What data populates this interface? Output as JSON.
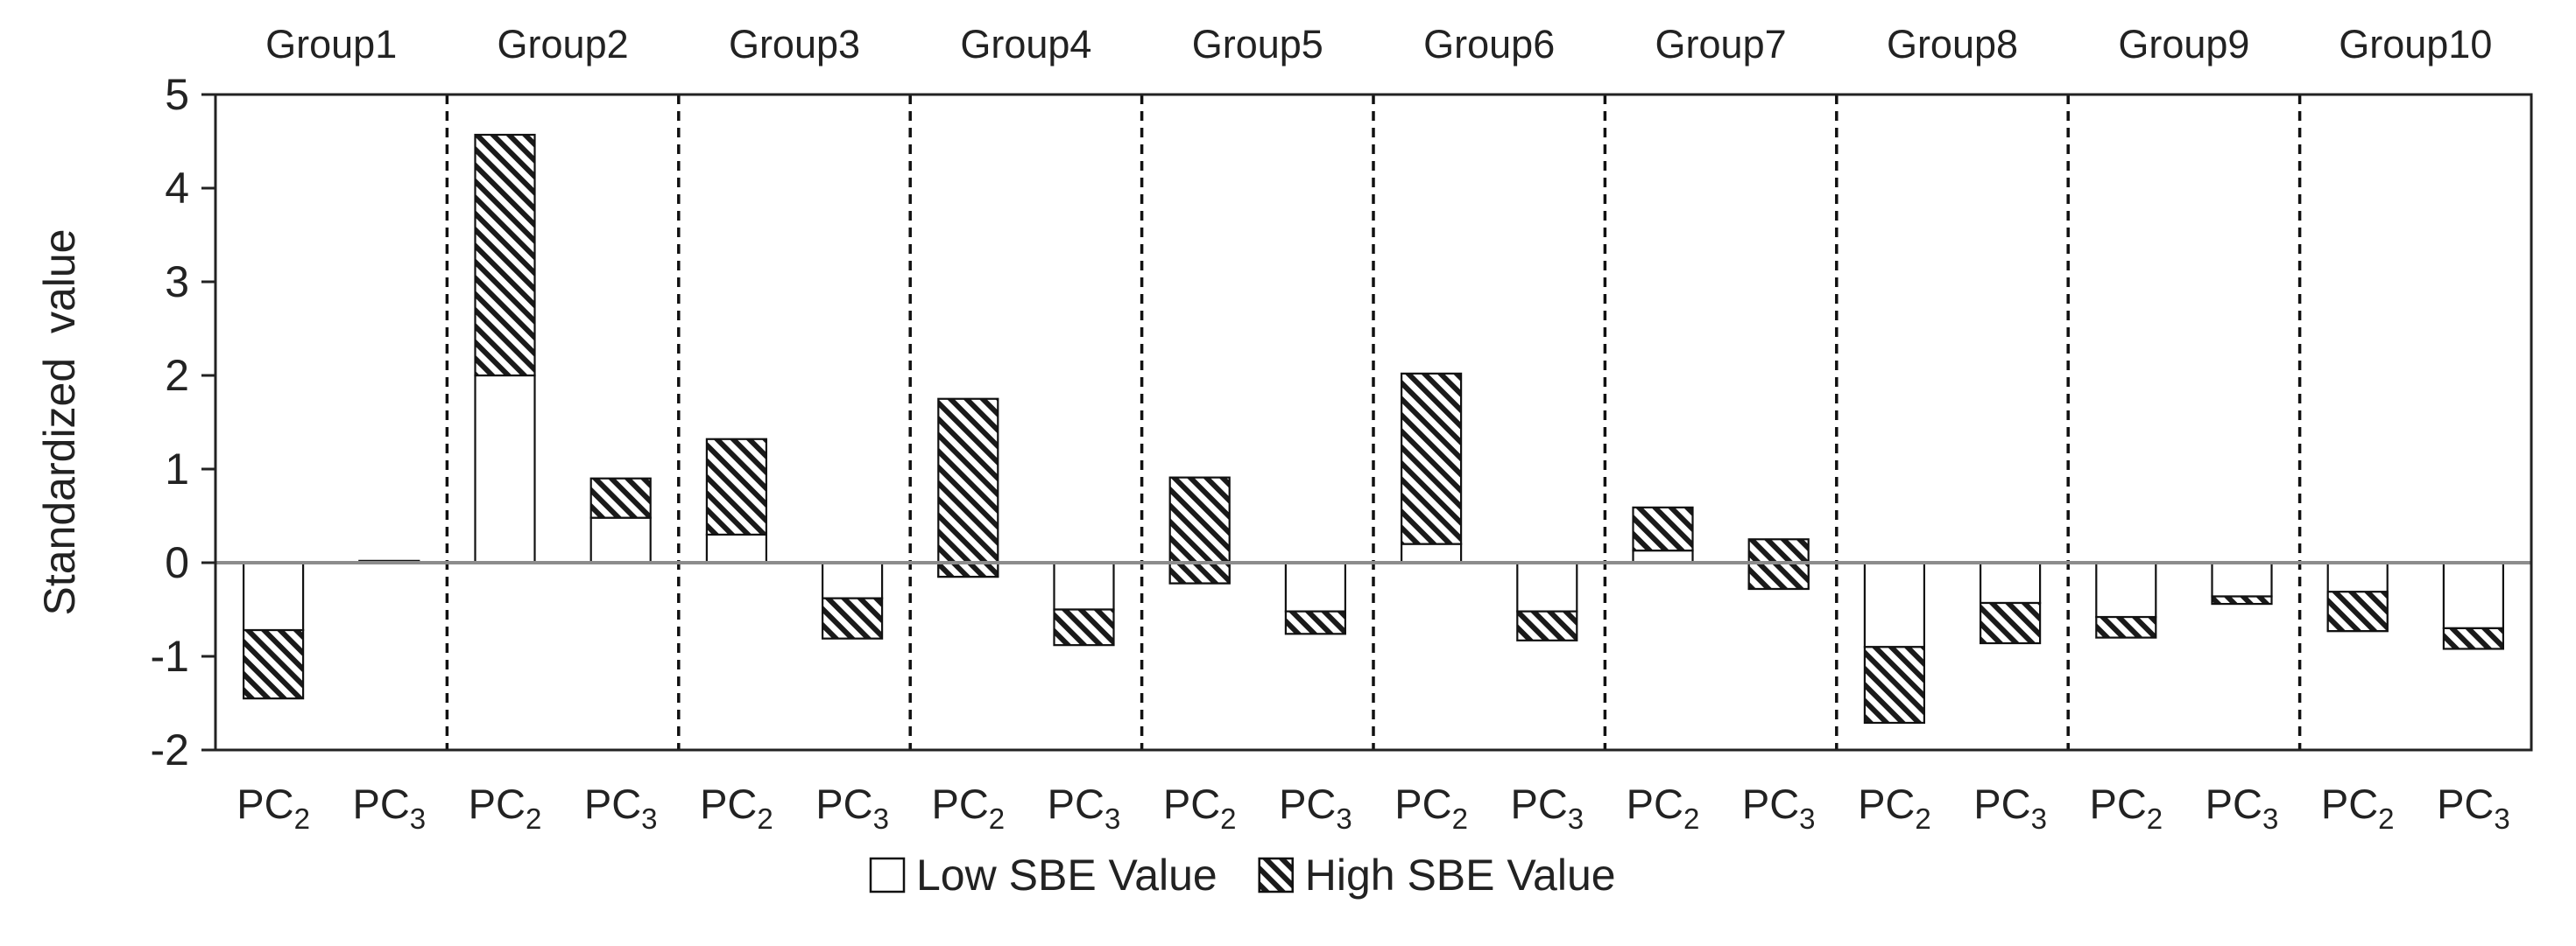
{
  "chart_data": {
    "type": "bar",
    "subtype": "stacked",
    "title": "",
    "xlabel": "",
    "ylabel": "Standardized  value",
    "ylim": [
      -2,
      5
    ],
    "yticks": [
      5,
      4,
      3,
      2,
      1,
      0,
      -1,
      -2
    ],
    "ytick_labels": [
      "5",
      "4",
      "3",
      "2",
      "1",
      "0",
      "-1",
      "-2"
    ],
    "groups": [
      "Group1",
      "Group2",
      "Group3",
      "Group4",
      "Group5",
      "Group6",
      "Group7",
      "Group8",
      "Group9",
      "Group10"
    ],
    "pc_labels": [
      {
        "base": "PC",
        "sub": "2"
      },
      {
        "base": "PC",
        "sub": "3"
      }
    ],
    "legend": {
      "position": "bottom-center",
      "entries": [
        {
          "name": "Low SBE Value",
          "style": "plain"
        },
        {
          "name": "High SBE Value",
          "style": "hatched"
        }
      ]
    },
    "series": [
      {
        "name": "Low SBE Value",
        "values": [
          -0.72,
          0.02,
          2.0,
          0.48,
          0.3,
          -0.38,
          -0.15,
          -0.5,
          -0.22,
          -0.52,
          0.2,
          -0.52,
          0.13,
          -0.28,
          -0.9,
          -0.43,
          -0.58,
          -0.36,
          -0.73,
          -0.7
        ]
      },
      {
        "name": "High SBE Value",
        "values": [
          -0.73,
          0.0,
          2.57,
          0.42,
          1.02,
          -0.43,
          1.9,
          -0.38,
          1.13,
          -0.24,
          1.82,
          -0.31,
          0.46,
          0.53,
          -0.81,
          -0.43,
          -0.22,
          -0.08,
          0.42,
          -0.22
        ]
      }
    ],
    "colors": {
      "axis": "#222222",
      "zero_line": "#8c8c8c",
      "bar_fill": "#ffffff",
      "hatch": "#1a1a1a"
    }
  }
}
